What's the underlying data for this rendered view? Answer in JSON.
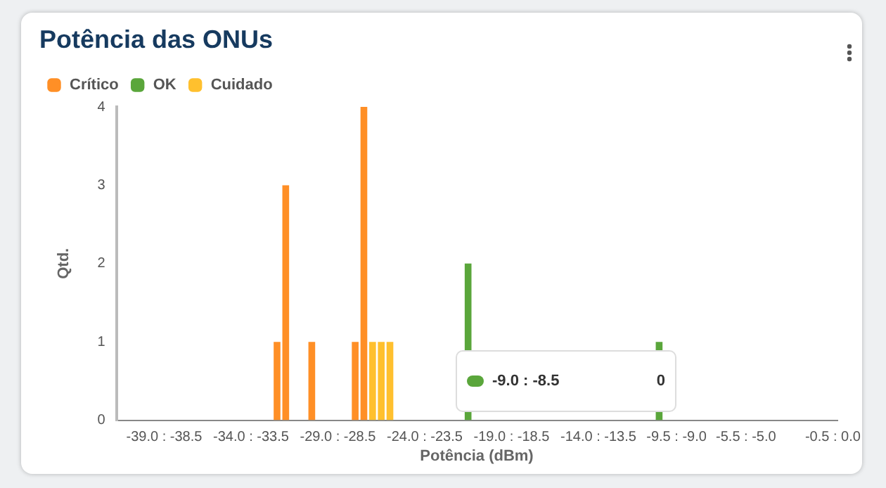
{
  "chart_data": {
    "type": "bar",
    "title": "Potência das ONUs",
    "xlabel": "Potência (dBm)",
    "ylabel": "Qtd.",
    "categories": [
      null,
      null,
      null,
      null,
      null,
      "-39.0 : -38.5",
      null,
      null,
      null,
      null,
      null,
      null,
      null,
      null,
      null,
      "-34.0 : -33.5",
      null,
      null,
      null,
      null,
      null,
      null,
      null,
      null,
      null,
      "-29.0 : -28.5",
      null,
      null,
      null,
      null,
      null,
      null,
      null,
      null,
      null,
      "-24.0 : -23.5",
      null,
      null,
      null,
      null,
      null,
      null,
      null,
      null,
      null,
      "-19.0 : -18.5",
      null,
      null,
      null,
      null,
      null,
      null,
      null,
      null,
      null,
      "-14.0 : -13.5",
      null,
      null,
      null,
      null,
      null,
      null,
      null,
      null,
      "-9.5 : -9.0",
      null,
      null,
      null,
      null,
      null,
      null,
      null,
      "-5.5 : -5.0",
      null,
      null,
      null,
      null,
      null,
      null,
      null,
      null,
      null,
      "-0.5 : 0.0"
    ],
    "series": [
      {
        "name": "Crítico",
        "color": "#ff8f26",
        "values": [
          0,
          0,
          0,
          0,
          0,
          0,
          0,
          0,
          0,
          0,
          0,
          0,
          0,
          0,
          0,
          0,
          0,
          0,
          1,
          3,
          0,
          0,
          1,
          0,
          0,
          0,
          0,
          1,
          4,
          0,
          0,
          0,
          0,
          0,
          0,
          0,
          0,
          0,
          0,
          0,
          0,
          0,
          0,
          0,
          0,
          0,
          0,
          0,
          0,
          0,
          0,
          0,
          0,
          0,
          0,
          0,
          0,
          0,
          0,
          0,
          0,
          0,
          0,
          0,
          0,
          0,
          0,
          0,
          0,
          0,
          0,
          0,
          0,
          0,
          0,
          0,
          0,
          0,
          0,
          0,
          0,
          0,
          0
        ]
      },
      {
        "name": "OK",
        "color": "#5aa63b",
        "values": [
          0,
          0,
          0,
          0,
          0,
          0,
          0,
          0,
          0,
          0,
          0,
          0,
          0,
          0,
          0,
          0,
          0,
          0,
          0,
          0,
          0,
          0,
          0,
          0,
          0,
          0,
          0,
          0,
          0,
          0,
          0,
          0,
          0,
          0,
          0,
          0,
          0,
          0,
          0,
          0,
          2,
          0,
          0,
          0,
          0,
          0,
          0,
          0,
          0,
          0,
          0,
          0,
          0,
          0,
          0,
          0,
          0,
          0,
          0,
          0,
          0,
          0,
          1,
          0,
          0,
          0,
          0,
          0,
          0,
          0,
          0,
          0,
          0,
          0,
          0,
          0,
          0,
          0,
          0,
          0,
          0,
          0,
          0
        ]
      },
      {
        "name": "Cuidado",
        "color": "#ffc02e",
        "values": [
          0,
          0,
          0,
          0,
          0,
          0,
          0,
          0,
          0,
          0,
          0,
          0,
          0,
          0,
          0,
          0,
          0,
          0,
          0,
          0,
          0,
          0,
          0,
          0,
          0,
          0,
          0,
          0,
          0,
          1,
          1,
          1,
          0,
          0,
          0,
          0,
          0,
          0,
          0,
          0,
          0,
          0,
          0,
          0,
          0,
          0,
          0,
          0,
          0,
          0,
          0,
          0,
          0,
          0,
          0,
          0,
          0,
          0,
          0,
          0,
          0,
          0,
          0,
          0,
          0,
          0,
          0,
          0,
          0,
          0,
          0,
          0,
          0,
          0,
          0,
          0,
          0,
          0,
          0,
          0,
          0,
          0,
          0
        ]
      }
    ],
    "stacked": true,
    "ylim": [
      0,
      4
    ],
    "yticks": [
      0,
      1,
      2,
      3,
      4
    ],
    "grid": false,
    "legend": "top left",
    "annotations": [
      "-9.0 : -8.5",
      "0"
    ]
  }
}
